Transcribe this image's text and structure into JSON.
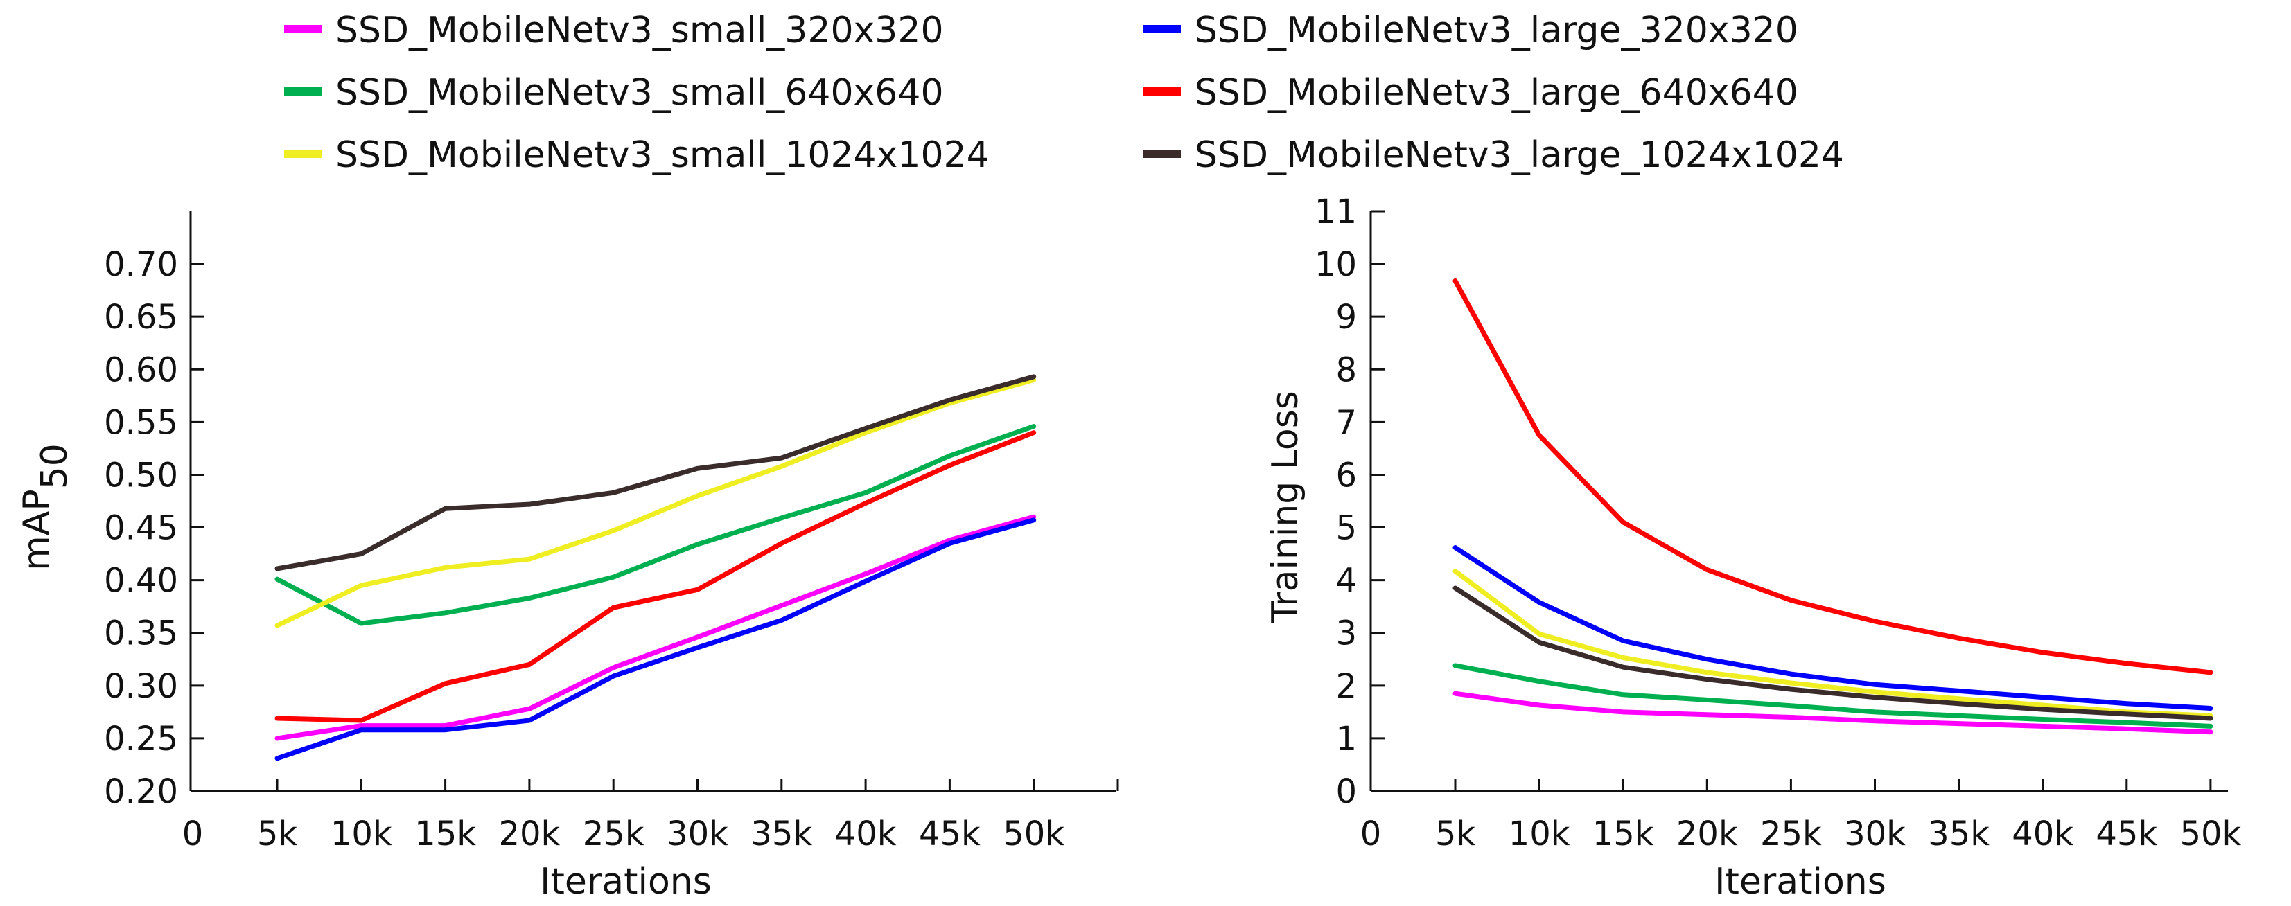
{
  "legend": [
    {
      "name": "SSD_MobileNetv3_small_320x320",
      "color": "#ff00ff"
    },
    {
      "name": "SSD_MobileNetv3_large_320x320",
      "color": "#0000ff"
    },
    {
      "name": "SSD_MobileNetv3_small_640x640",
      "color": "#00b050"
    },
    {
      "name": "SSD_MobileNetv3_large_640x640",
      "color": "#ff0000"
    },
    {
      "name": "SSD_MobileNetv3_small_1024x1024",
      "color": "#eeee22"
    },
    {
      "name": "SSD_MobileNetv3_large_1024x1024",
      "color": "#3b2c2c"
    }
  ],
  "chart_data": [
    {
      "type": "line",
      "xlabel": "Iterations",
      "ylabel": "mAP",
      "ylabel_subscript": "50",
      "x_tick_labels": [
        "0",
        "5k",
        "10k",
        "15k",
        "20k",
        "25k",
        "30k",
        "35k",
        "40k",
        "45k",
        "50k"
      ],
      "y_tick_labels": [
        "0.20",
        "0.25",
        "0.30",
        "0.35",
        "0.40",
        "0.45",
        "0.50",
        "0.55",
        "0.60",
        "0.65",
        "0.70"
      ],
      "x": [
        5000,
        10000,
        15000,
        20000,
        25000,
        30000,
        35000,
        40000,
        45000,
        50000
      ],
      "xlim": [
        0,
        55000
      ],
      "ylim": [
        0.2,
        0.75
      ],
      "series": [
        {
          "name": "SSD_MobileNetv3_small_320x320",
          "color": "#ff00ff",
          "values": [
            0.25,
            0.262,
            0.262,
            0.278,
            0.317,
            0.346,
            0.376,
            0.406,
            0.438,
            0.46
          ]
        },
        {
          "name": "SSD_MobileNetv3_large_320x320",
          "color": "#0000ff",
          "values": [
            0.231,
            0.258,
            0.258,
            0.267,
            0.309,
            0.336,
            0.362,
            0.399,
            0.435,
            0.457
          ]
        },
        {
          "name": "SSD_MobileNetv3_small_640x640",
          "color": "#00b050",
          "values": [
            0.401,
            0.359,
            0.369,
            0.383,
            0.403,
            0.434,
            0.459,
            0.483,
            0.518,
            0.546
          ]
        },
        {
          "name": "SSD_MobileNetv3_large_640x640",
          "color": "#ff0000",
          "values": [
            0.269,
            0.267,
            0.302,
            0.32,
            0.374,
            0.391,
            0.435,
            0.473,
            0.509,
            0.54
          ]
        },
        {
          "name": "SSD_MobileNetv3_small_1024x1024",
          "color": "#eeee22",
          "values": [
            0.357,
            0.395,
            0.412,
            0.42,
            0.447,
            0.48,
            0.508,
            0.54,
            0.568,
            0.59
          ]
        },
        {
          "name": "SSD_MobileNetv3_large_1024x1024",
          "color": "#3b2c2c",
          "values": [
            0.411,
            0.425,
            0.468,
            0.472,
            0.483,
            0.506,
            0.516,
            0.544,
            0.571,
            0.593
          ]
        }
      ]
    },
    {
      "type": "line",
      "xlabel": "Iterations",
      "ylabel": "Training Loss",
      "x_tick_labels": [
        "0",
        "5k",
        "10k",
        "15k",
        "20k",
        "25k",
        "30k",
        "35k",
        "40k",
        "45k",
        "50k"
      ],
      "y_tick_labels": [
        "0",
        "1",
        "2",
        "3",
        "4",
        "5",
        "6",
        "7",
        "8",
        "9",
        "10",
        "11"
      ],
      "x": [
        5000,
        10000,
        15000,
        20000,
        25000,
        30000,
        35000,
        40000,
        45000,
        50000
      ],
      "xlim": [
        0,
        55000
      ],
      "ylim": [
        0,
        11
      ],
      "series": [
        {
          "name": "SSD_MobileNetv3_small_320x320",
          "color": "#ff00ff",
          "values": [
            1.85,
            1.63,
            1.5,
            1.45,
            1.4,
            1.33,
            1.28,
            1.23,
            1.18,
            1.12
          ]
        },
        {
          "name": "SSD_MobileNetv3_large_320x320",
          "color": "#0000ff",
          "values": [
            4.62,
            3.58,
            2.85,
            2.5,
            2.22,
            2.02,
            1.9,
            1.78,
            1.66,
            1.57
          ]
        },
        {
          "name": "SSD_MobileNetv3_small_640x640",
          "color": "#00b050",
          "values": [
            2.38,
            2.08,
            1.83,
            1.73,
            1.62,
            1.5,
            1.43,
            1.36,
            1.3,
            1.23
          ]
        },
        {
          "name": "SSD_MobileNetv3_large_640x640",
          "color": "#ff0000",
          "values": [
            9.68,
            6.75,
            5.1,
            4.2,
            3.62,
            3.22,
            2.9,
            2.63,
            2.42,
            2.25
          ]
        },
        {
          "name": "SSD_MobileNetv3_small_1024x1024",
          "color": "#eeee22",
          "values": [
            4.17,
            2.98,
            2.53,
            2.25,
            2.05,
            1.88,
            1.75,
            1.63,
            1.5,
            1.43
          ]
        },
        {
          "name": "SSD_MobileNetv3_large_1024x1024",
          "color": "#3b2c2c",
          "values": [
            3.85,
            2.82,
            2.35,
            2.12,
            1.93,
            1.78,
            1.66,
            1.55,
            1.46,
            1.38
          ]
        }
      ]
    }
  ]
}
